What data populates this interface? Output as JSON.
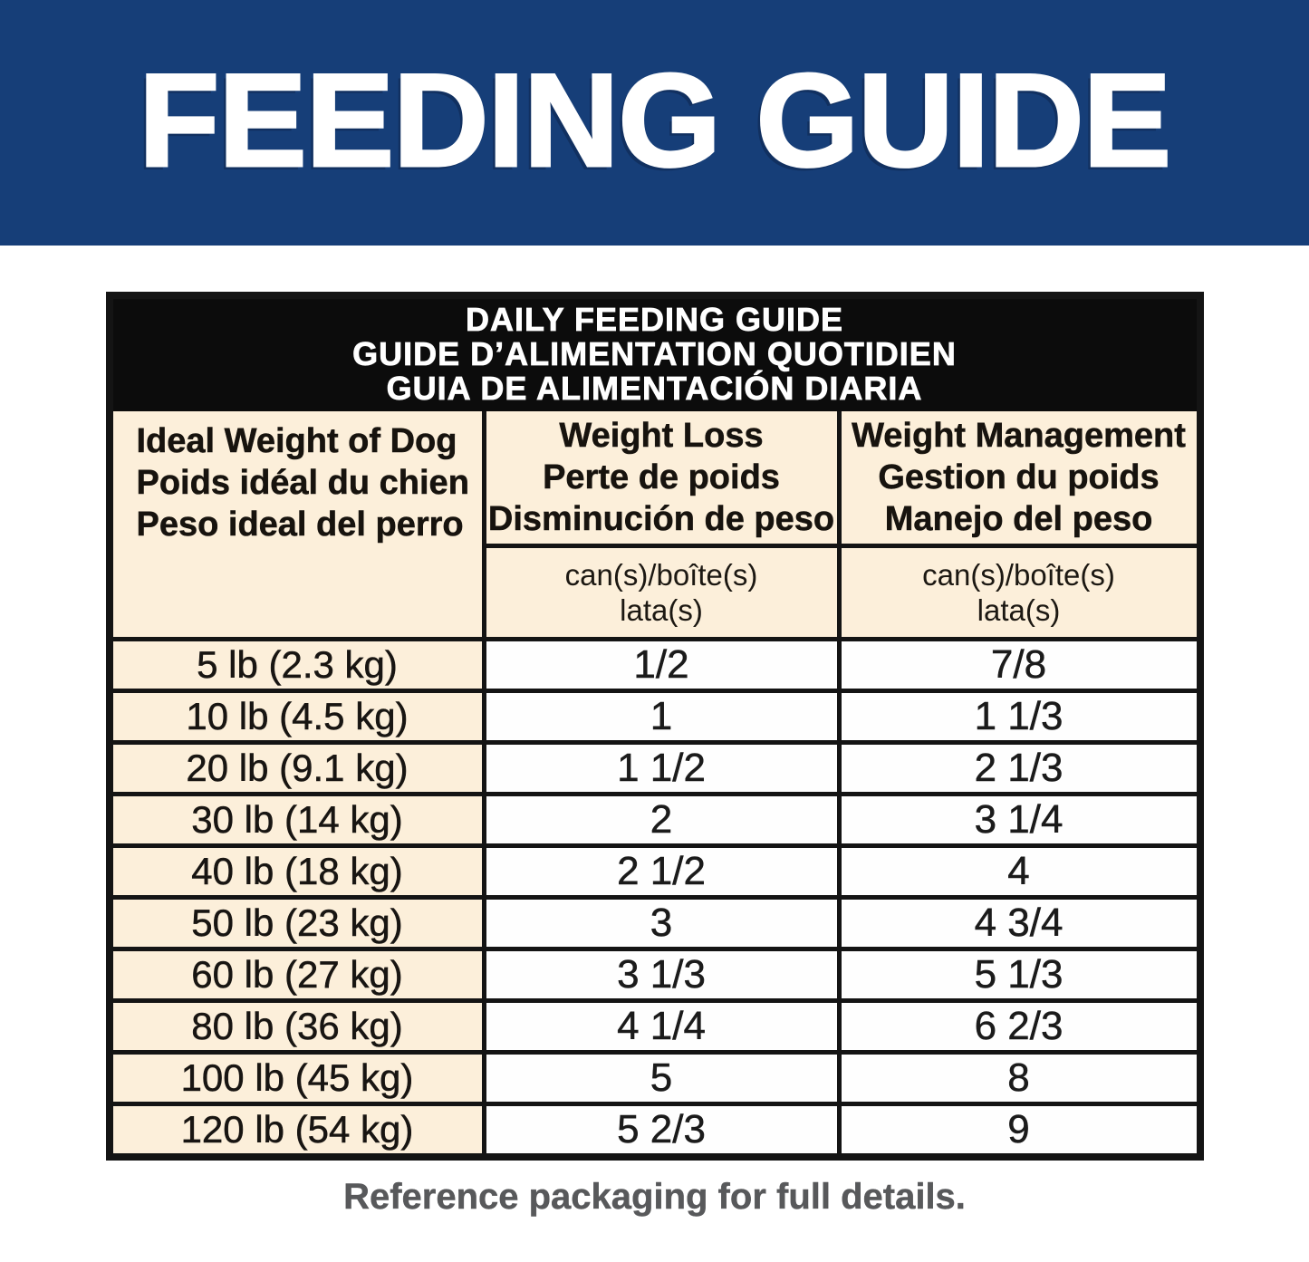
{
  "banner": {
    "title": "FEEDING GUIDE"
  },
  "table": {
    "title_lines": [
      "DAILY FEEDING GUIDE",
      "GUIDE D’ALIMENTATION QUOTIDIEN",
      "GUIA DE ALIMENTACIÓN DIARIA"
    ],
    "columns": [
      {
        "id": "ideal-weight",
        "lines": [
          "Ideal Weight of Dog",
          "Poids idéal du chien",
          "Peso ideal del perro"
        ]
      },
      {
        "id": "weight-loss",
        "lines": [
          "Weight Loss",
          "Perte de poids",
          "Disminución de peso"
        ],
        "unit_lines": [
          "can(s)/boîte(s)",
          "lata(s)"
        ]
      },
      {
        "id": "weight-management",
        "lines": [
          "Weight Management",
          "Gestion du poids",
          "Manejo del peso"
        ],
        "unit_lines": [
          "can(s)/boîte(s)",
          "lata(s)"
        ]
      }
    ],
    "rows": [
      {
        "weight": "5 lb (2.3 kg)",
        "weight_loss": "1/2",
        "weight_management": "7/8"
      },
      {
        "weight": "10 lb (4.5 kg)",
        "weight_loss": "1",
        "weight_management": "1 1/3"
      },
      {
        "weight": "20 lb (9.1 kg)",
        "weight_loss": "1 1/2",
        "weight_management": "2 1/3"
      },
      {
        "weight": "30 lb (14 kg)",
        "weight_loss": "2",
        "weight_management": "3 1/4"
      },
      {
        "weight": "40 lb (18 kg)",
        "weight_loss": "2 1/2",
        "weight_management": "4"
      },
      {
        "weight": "50 lb (23 kg)",
        "weight_loss": "3",
        "weight_management": "4 3/4"
      },
      {
        "weight": "60 lb (27 kg)",
        "weight_loss": "3 1/3",
        "weight_management": "5 1/3"
      },
      {
        "weight": "80 lb (36 kg)",
        "weight_loss": "4 1/4",
        "weight_management": "6 2/3"
      },
      {
        "weight": "100 lb (45 kg)",
        "weight_loss": "5",
        "weight_management": "8"
      },
      {
        "weight": "120 lb (54 kg)",
        "weight_loss": "5 2/3",
        "weight_management": "9"
      }
    ]
  },
  "footer": {
    "note": "Reference packaging for full details."
  },
  "colors": {
    "banner_blue": "#163e78",
    "title_band_black": "#0c0c0c",
    "table_cream": "#fcefda",
    "value_cell_white": "#fefefe",
    "border_black": "#141414",
    "footer_gray": "#58595b",
    "banner_text_white": "#ffffff"
  }
}
